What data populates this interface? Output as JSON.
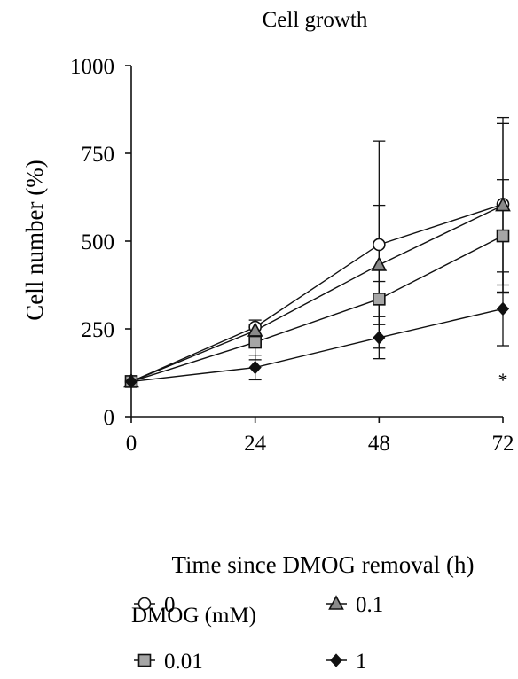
{
  "chart_data": {
    "type": "line",
    "title": "Cell growth",
    "xlabel": "Time since DMOG removal (h)",
    "ylabel": "Cell number (%)",
    "x": [
      0,
      24,
      48,
      72
    ],
    "xlim": [
      0,
      72
    ],
    "ylim": [
      0,
      1000
    ],
    "yticks": [
      0,
      250,
      500,
      750,
      1000
    ],
    "xticks": [
      0,
      24,
      48,
      72
    ],
    "grid": false,
    "legend": {
      "title": "DMOG (mM)",
      "placement": "bottom",
      "entries": [
        "0",
        "0.1",
        "0.01",
        "1"
      ]
    },
    "series": [
      {
        "name": "0",
        "marker": "circle-open",
        "fill": "#ffffff",
        "values": [
          100,
          255,
          490,
          605
        ],
        "err": [
          0,
          20,
          295,
          230
        ]
      },
      {
        "name": "0.1",
        "marker": "triangle",
        "fill": "#8a8a8a",
        "values": [
          100,
          245,
          432,
          602
        ],
        "err": [
          0,
          15,
          170,
          250
        ]
      },
      {
        "name": "0.01",
        "marker": "square",
        "fill": "#a6a6a6",
        "values": [
          100,
          212,
          335,
          515
        ],
        "err": [
          0,
          50,
          50,
          160
        ]
      },
      {
        "name": "1",
        "marker": "diamond",
        "fill": "#111111",
        "values": [
          100,
          140,
          225,
          307
        ],
        "err": [
          0,
          35,
          60,
          105
        ]
      }
    ],
    "annotations": [
      {
        "text": "*",
        "x": 72
      }
    ]
  }
}
